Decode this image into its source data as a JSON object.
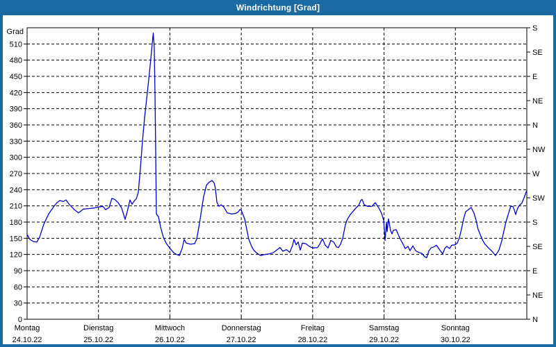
{
  "window": {
    "title": "Windrichtung [Grad]",
    "titlebar_color": "#1b6aa1",
    "border_color": "#1b6aa1"
  },
  "chart_data": {
    "type": "line",
    "title": "Windrichtung [Grad]",
    "ylabel": "Grad",
    "line_color": "#0000cd",
    "grid_dashed": true,
    "ylim": [
      0,
      540
    ],
    "y_tick_step": 30,
    "y_tick_labels": [
      "0",
      "30",
      "60",
      "90",
      "120",
      "150",
      "180",
      "210",
      "240",
      "270",
      "300",
      "330",
      "360",
      "390",
      "420",
      "450",
      "480",
      "510"
    ],
    "right_axis_ticks": [
      {
        "deg": 540,
        "label": "S"
      },
      {
        "deg": 495,
        "label": "SE"
      },
      {
        "deg": 450,
        "label": "E"
      },
      {
        "deg": 405,
        "label": "NE"
      },
      {
        "deg": 360,
        "label": "N"
      },
      {
        "deg": 315,
        "label": "NW"
      },
      {
        "deg": 270,
        "label": "W"
      },
      {
        "deg": 225,
        "label": "SW"
      },
      {
        "deg": 180,
        "label": "S"
      },
      {
        "deg": 135,
        "label": "SE"
      },
      {
        "deg": 90,
        "label": "E"
      },
      {
        "deg": 45,
        "label": "NE"
      },
      {
        "deg": 0,
        "label": "N"
      }
    ],
    "x_days": [
      {
        "name": "Montag",
        "date": "24.10.22"
      },
      {
        "name": "Dienstag",
        "date": "25.10.22"
      },
      {
        "name": "Mittwoch",
        "date": "26.10.22"
      },
      {
        "name": "Donnerstag",
        "date": "27.10.22"
      },
      {
        "name": "Freitag",
        "date": "28.10.22"
      },
      {
        "name": "Samstag",
        "date": "29.10.22"
      },
      {
        "name": "Sonntag",
        "date": "30.10.22"
      }
    ],
    "x_range_days": [
      0,
      7
    ],
    "series": [
      {
        "name": "Windrichtung",
        "points": [
          [
            0.0,
            157
          ],
          [
            0.039,
            148
          ],
          [
            0.088,
            144
          ],
          [
            0.136,
            143
          ],
          [
            0.175,
            152
          ],
          [
            0.234,
            176
          ],
          [
            0.302,
            195
          ],
          [
            0.37,
            208
          ],
          [
            0.419,
            216
          ],
          [
            0.458,
            220
          ],
          [
            0.506,
            218
          ],
          [
            0.545,
            221
          ],
          [
            0.594,
            212
          ],
          [
            0.662,
            203
          ],
          [
            0.72,
            197
          ],
          [
            0.789,
            204
          ],
          [
            0.857,
            205
          ],
          [
            0.935,
            206
          ],
          [
            1.0,
            208
          ],
          [
            1.061,
            209
          ],
          [
            1.1,
            203
          ],
          [
            1.149,
            207
          ],
          [
            1.188,
            224
          ],
          [
            1.227,
            222
          ],
          [
            1.275,
            216
          ],
          [
            1.324,
            206
          ],
          [
            1.373,
            185
          ],
          [
            1.402,
            199
          ],
          [
            1.441,
            221
          ],
          [
            1.47,
            213
          ],
          [
            1.499,
            219
          ],
          [
            1.529,
            223
          ],
          [
            1.558,
            235
          ],
          [
            1.587,
            280
          ],
          [
            1.616,
            330
          ],
          [
            1.645,
            373
          ],
          [
            1.684,
            420
          ],
          [
            1.713,
            455
          ],
          [
            1.742,
            495
          ],
          [
            1.767,
            530
          ],
          [
            1.781,
            505
          ],
          [
            1.791,
            420
          ],
          [
            1.801,
            310
          ],
          [
            1.811,
            195
          ],
          [
            1.84,
            190
          ],
          [
            1.869,
            171
          ],
          [
            1.908,
            152
          ],
          [
            1.947,
            141
          ],
          [
            1.996,
            132
          ],
          [
            2.054,
            123
          ],
          [
            2.093,
            120
          ],
          [
            2.132,
            118
          ],
          [
            2.171,
            131
          ],
          [
            2.2,
            148
          ],
          [
            2.229,
            141
          ],
          [
            2.288,
            139
          ],
          [
            2.346,
            140
          ],
          [
            2.375,
            148
          ],
          [
            2.414,
            177
          ],
          [
            2.444,
            203
          ],
          [
            2.473,
            227
          ],
          [
            2.512,
            248
          ],
          [
            2.551,
            254
          ],
          [
            2.59,
            257
          ],
          [
            2.619,
            253
          ],
          [
            2.638,
            242
          ],
          [
            2.658,
            217
          ],
          [
            2.687,
            209
          ],
          [
            2.716,
            212
          ],
          [
            2.755,
            208
          ],
          [
            2.804,
            197
          ],
          [
            2.862,
            195
          ],
          [
            2.921,
            196
          ],
          [
            2.96,
            199
          ],
          [
            2.979,
            203
          ],
          [
            3.0,
            202
          ],
          [
            3.047,
            186
          ],
          [
            3.076,
            167
          ],
          [
            3.106,
            148
          ],
          [
            3.145,
            135
          ],
          [
            3.174,
            128
          ],
          [
            3.223,
            122
          ],
          [
            3.271,
            118
          ],
          [
            3.33,
            120
          ],
          [
            3.388,
            121
          ],
          [
            3.447,
            123
          ],
          [
            3.495,
            128
          ],
          [
            3.544,
            133
          ],
          [
            3.583,
            126
          ],
          [
            3.632,
            129
          ],
          [
            3.68,
            124
          ],
          [
            3.719,
            137
          ],
          [
            3.739,
            148
          ],
          [
            3.768,
            138
          ],
          [
            3.797,
            143
          ],
          [
            3.826,
            128
          ],
          [
            3.855,
            141
          ],
          [
            3.904,
            140
          ],
          [
            3.953,
            135
          ],
          [
            4.0,
            132
          ],
          [
            4.07,
            133
          ],
          [
            4.099,
            139
          ],
          [
            4.138,
            149
          ],
          [
            4.177,
            137
          ],
          [
            4.216,
            132
          ],
          [
            4.255,
            146
          ],
          [
            4.294,
            143
          ],
          [
            4.333,
            134
          ],
          [
            4.362,
            133
          ],
          [
            4.391,
            139
          ],
          [
            4.421,
            150
          ],
          [
            4.46,
            176
          ],
          [
            4.489,
            186
          ],
          [
            4.528,
            194
          ],
          [
            4.567,
            200
          ],
          [
            4.606,
            206
          ],
          [
            4.645,
            211
          ],
          [
            4.674,
            220
          ],
          [
            4.693,
            222
          ],
          [
            4.722,
            212
          ],
          [
            4.771,
            209
          ],
          [
            4.829,
            209
          ],
          [
            4.878,
            216
          ],
          [
            4.927,
            206
          ],
          [
            4.966,
            196
          ],
          [
            4.995,
            183
          ],
          [
            5.014,
            146
          ],
          [
            5.034,
            180
          ],
          [
            5.043,
            162
          ],
          [
            5.063,
            186
          ],
          [
            5.092,
            164
          ],
          [
            5.111,
            158
          ],
          [
            5.131,
            165
          ],
          [
            5.17,
            166
          ],
          [
            5.199,
            157
          ],
          [
            5.238,
            146
          ],
          [
            5.267,
            139
          ],
          [
            5.296,
            131
          ],
          [
            5.335,
            135
          ],
          [
            5.364,
            127
          ],
          [
            5.403,
            136
          ],
          [
            5.442,
            127
          ],
          [
            5.481,
            124
          ],
          [
            5.529,
            122
          ],
          [
            5.568,
            116
          ],
          [
            5.597,
            114
          ],
          [
            5.626,
            126
          ],
          [
            5.656,
            132
          ],
          [
            5.695,
            134
          ],
          [
            5.734,
            137
          ],
          [
            5.782,
            128
          ],
          [
            5.821,
            121
          ],
          [
            5.85,
            131
          ],
          [
            5.879,
            135
          ],
          [
            5.918,
            131
          ],
          [
            5.947,
            137
          ],
          [
            5.996,
            138
          ],
          [
            6.025,
            141
          ],
          [
            6.054,
            150
          ],
          [
            6.083,
            166
          ],
          [
            6.113,
            185
          ],
          [
            6.142,
            199
          ],
          [
            6.181,
            203
          ],
          [
            6.22,
            207
          ],
          [
            6.259,
            197
          ],
          [
            6.288,
            184
          ],
          [
            6.317,
            167
          ],
          [
            6.356,
            154
          ],
          [
            6.386,
            145
          ],
          [
            6.415,
            139
          ],
          [
            6.464,
            132
          ],
          [
            6.512,
            126
          ],
          [
            6.561,
            118
          ],
          [
            6.61,
            128
          ],
          [
            6.649,
            145
          ],
          [
            6.678,
            163
          ],
          [
            6.707,
            180
          ],
          [
            6.746,
            197
          ],
          [
            6.775,
            209
          ],
          [
            6.804,
            209
          ],
          [
            6.824,
            203
          ],
          [
            6.843,
            194
          ],
          [
            6.873,
            206
          ],
          [
            6.902,
            212
          ],
          [
            6.931,
            215
          ],
          [
            6.961,
            225
          ],
          [
            7.0,
            239
          ]
        ]
      }
    ]
  }
}
